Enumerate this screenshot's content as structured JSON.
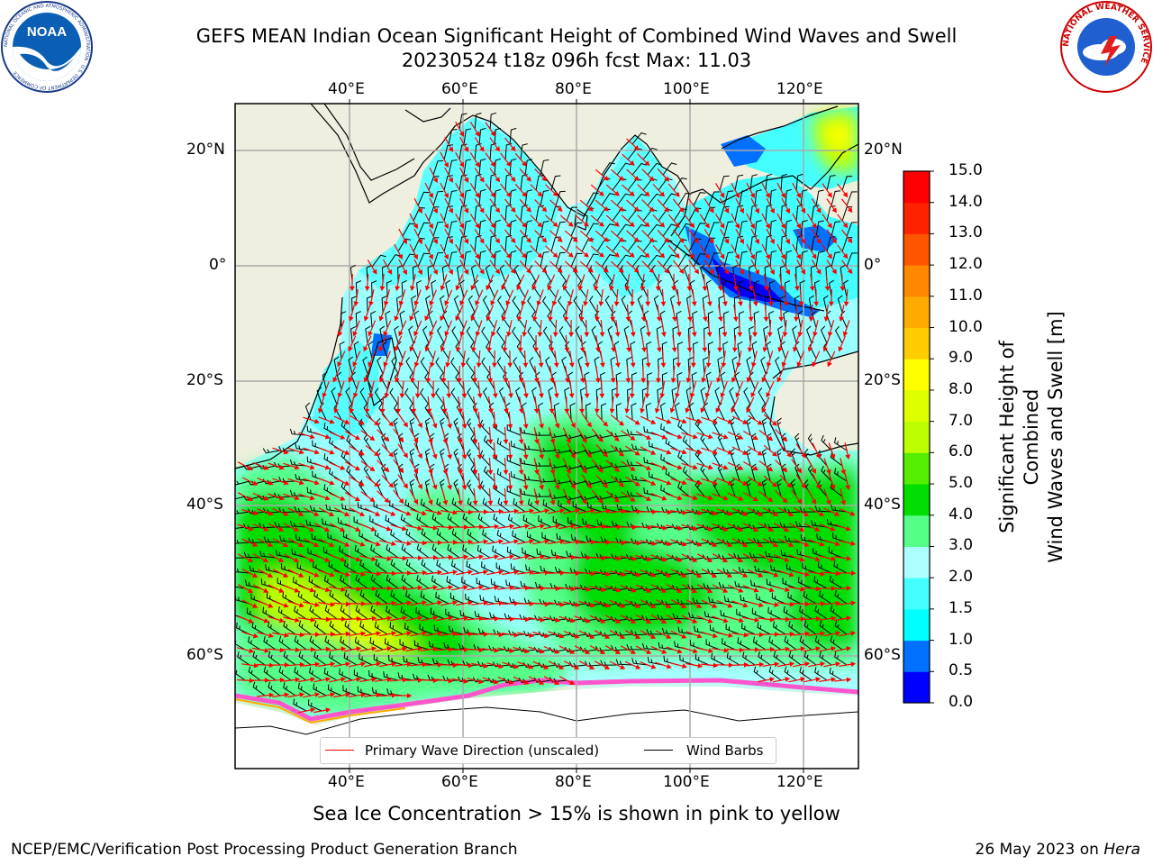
{
  "header": {
    "title_line1": "GEFS MEAN Indian Ocean Significant Height of Combined Wind Waves and Swell",
    "title_line2": "20230524 t18z 096h fcst   Max: 11.03"
  },
  "logos": {
    "noaa_text": "NOAA",
    "noaa_ring_text": "NATIONAL OCEANIC AND ATMOSPHERIC ADMINISTRATION · U.S. DEPARTMENT OF COMMERCE",
    "nws_ring_text": "NATIONAL WEATHER SERVICE"
  },
  "map": {
    "lon_labels": [
      "40°E",
      "60°E",
      "80°E",
      "100°E",
      "120°E"
    ],
    "lat_labels_left": [
      "20°N",
      "0°",
      "20°S",
      "40°S",
      "60°S"
    ],
    "lat_labels_right": [
      "20°N",
      "0°",
      "20°S",
      "40°S",
      "60°S"
    ],
    "land_color": "#efefdf",
    "wave_arrow_color": "#ff0000",
    "wind_barb_color": "#000000"
  },
  "legend": {
    "wave_label": "Primary Wave Direction (unscaled)",
    "wind_label": "Wind Barbs"
  },
  "colorbar": {
    "title_line1": "Significant Height of Combined",
    "title_line2": "Wind Waves and Swell [m]",
    "tick_labels": [
      "15.0",
      "14.0",
      "13.0",
      "12.0",
      "11.0",
      "10.0",
      "9.0",
      "8.0",
      "7.0",
      "6.0",
      "5.0",
      "4.0",
      "3.0",
      "2.0",
      "1.5",
      "1.0",
      "0.5",
      "0.0"
    ],
    "colors_bottom_to_top": [
      "#0000ff",
      "#0070ff",
      "#00ffff",
      "#44ffff",
      "#aaffff",
      "#55ff88",
      "#00dd00",
      "#55ee00",
      "#bbff00",
      "#ddff00",
      "#ffff00",
      "#ffcc00",
      "#ffaa00",
      "#ff8800",
      "#ff5500",
      "#ff2200",
      "#ff0000"
    ]
  },
  "footer": {
    "note": "Sea Ice Concentration > 15% is shown in pink to yellow",
    "left": "NCEP/EMC/Verification Post Processing Product Generation Branch",
    "right_prefix": "26 May 2023 on ",
    "right_machine": "Hera"
  }
}
